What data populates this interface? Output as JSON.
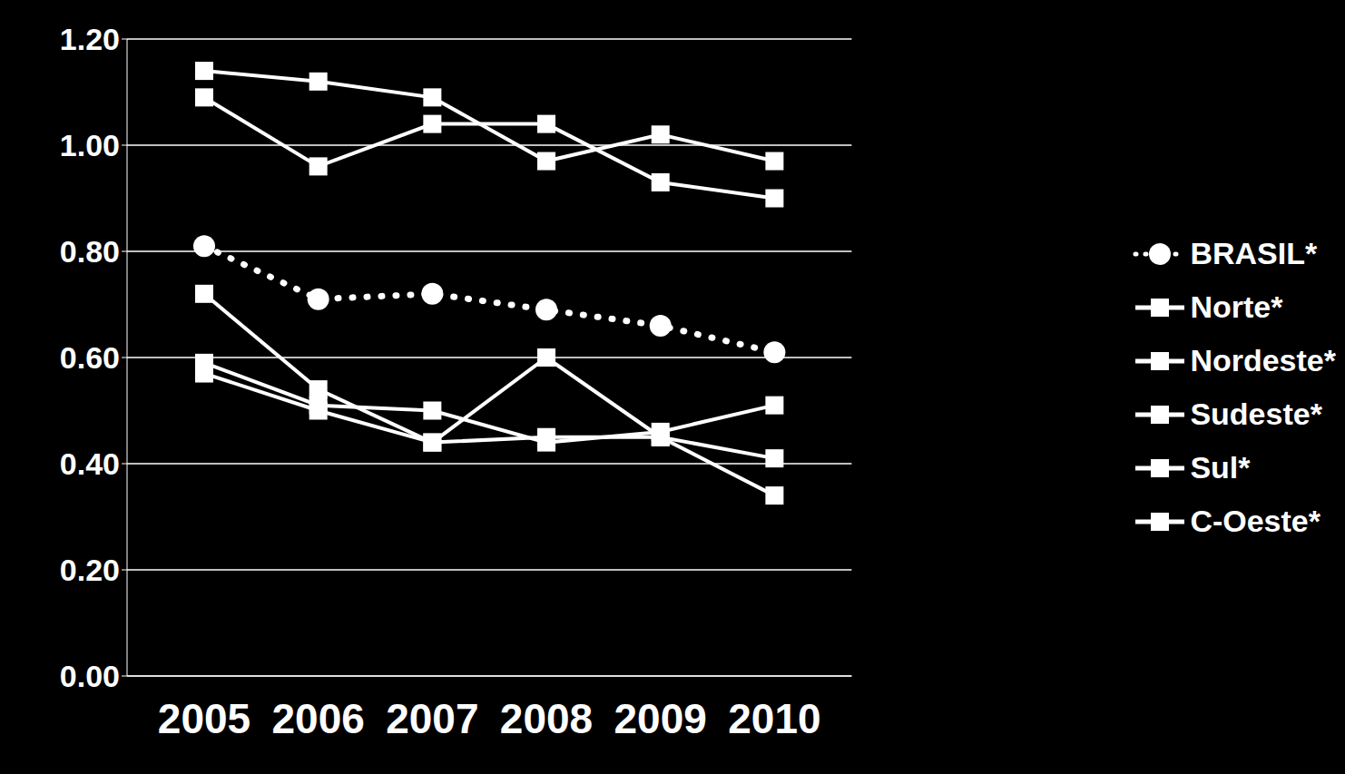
{
  "chart_data": {
    "type": "line",
    "categories": [
      "2005",
      "2006",
      "2007",
      "2008",
      "2009",
      "2010"
    ],
    "series": [
      {
        "name": "BRASIL*",
        "color": "#ffffff",
        "marker": "circle",
        "line_style": "dotted",
        "values": [
          0.81,
          0.71,
          0.72,
          0.69,
          0.66,
          0.61
        ]
      },
      {
        "name": "Norte*",
        "color": "#ffffff",
        "marker": "square",
        "line_style": "solid",
        "values": [
          1.14,
          1.12,
          1.09,
          0.97,
          1.02,
          0.97
        ]
      },
      {
        "name": "Nordeste*",
        "color": "#ffffff",
        "marker": "square",
        "line_style": "solid",
        "values": [
          1.09,
          0.96,
          1.04,
          1.04,
          0.93,
          0.9
        ]
      },
      {
        "name": "Sudeste*",
        "color": "#ffffff",
        "marker": "square",
        "line_style": "solid",
        "values": [
          0.59,
          0.51,
          0.5,
          0.44,
          0.46,
          0.51
        ]
      },
      {
        "name": "Sul*",
        "color": "#ffffff",
        "marker": "square",
        "line_style": "solid",
        "values": [
          0.57,
          0.5,
          0.44,
          0.45,
          0.45,
          0.41
        ]
      },
      {
        "name": "C-Oeste*",
        "color": "#ffffff",
        "marker": "square",
        "line_style": "solid",
        "values": [
          0.72,
          0.54,
          0.44,
          0.6,
          0.45,
          0.34
        ]
      }
    ],
    "ylim": [
      0,
      1.2
    ],
    "yticks": [
      {
        "value": 0,
        "label": "0.00"
      },
      {
        "value": 0.2,
        "label": "0.20"
      },
      {
        "value": 0.4,
        "label": "0.40"
      },
      {
        "value": 0.6,
        "label": "0.60"
      },
      {
        "value": 0.8,
        "label": "0.80"
      },
      {
        "value": 1,
        "label": "1.00"
      },
      {
        "value": 1.2,
        "label": "1.20"
      }
    ],
    "grid": true,
    "legend": "right"
  }
}
